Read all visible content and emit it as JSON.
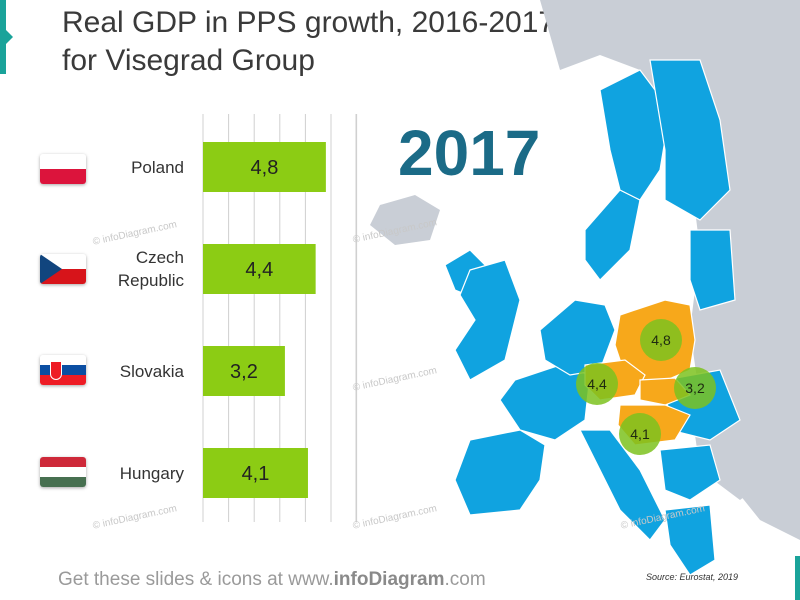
{
  "title_line1": "Real GDP in PPS growth, 2016-2017",
  "title_line2": "for Visegrad Group",
  "year_label": "2017",
  "chart_data": {
    "type": "bar",
    "orientation": "horizontal",
    "categories": [
      "Poland",
      "Czech Republic",
      "Slovakia",
      "Hungary"
    ],
    "values": [
      4.8,
      4.4,
      3.2,
      4.1
    ],
    "value_labels": [
      "4,8",
      "4,4",
      "3,2",
      "4,1"
    ],
    "xlim": [
      0,
      6
    ],
    "grid": true,
    "bar_color": "#8ccc14"
  },
  "country_labels": {
    "poland": "Poland",
    "czech_line1": "Czech",
    "czech_line2": "Republic",
    "slovakia": "Slovakia",
    "hungary": "Hungary"
  },
  "map_bubbles": [
    {
      "country": "Poland",
      "label": "4,8"
    },
    {
      "country": "Czech Republic",
      "label": "4,4"
    },
    {
      "country": "Slovakia",
      "label": "3,2"
    },
    {
      "country": "Hungary",
      "label": "4,1"
    }
  ],
  "colors": {
    "eu": "#10a3e0",
    "non_eu": "#c9ced6",
    "visegrad": "#f7a81b",
    "bar": "#8ccc14",
    "bubble": "#7dc21e",
    "year": "#1b6b87",
    "accent": "#1aa39a"
  },
  "watermark": "© infoDiagram.com",
  "footer": {
    "prefix": "Get these slides & icons at www.",
    "brand": "infoDiagram",
    "suffix": ".com"
  },
  "source": "Source: Eurostat, 2019"
}
